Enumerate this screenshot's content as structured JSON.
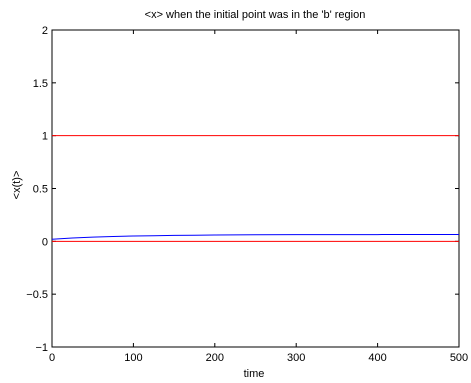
{
  "chart_data": {
    "type": "line",
    "title": "<x> when the initial point was in the 'b' region",
    "xlabel": "time",
    "ylabel": "<x(t)>",
    "xlim": [
      0,
      500
    ],
    "ylim": [
      -1,
      2
    ],
    "xticks": [
      0,
      100,
      200,
      300,
      400,
      500
    ],
    "yticks": [
      -1,
      -0.5,
      0,
      0.5,
      1,
      1.5,
      2
    ],
    "yticklabels": [
      "−1",
      "−0.5",
      "0",
      "0.5",
      "1",
      "1.5",
      "2"
    ],
    "grid": false,
    "series": [
      {
        "color": "#0000ff",
        "x": [
          0,
          10,
          25,
          50,
          75,
          100,
          125,
          150,
          175,
          200,
          250,
          300,
          350,
          400,
          450,
          500
        ],
        "y": [
          0.02,
          0.025,
          0.032,
          0.04,
          0.046,
          0.05,
          0.053,
          0.056,
          0.058,
          0.06,
          0.062,
          0.063,
          0.064,
          0.064,
          0.065,
          0.065
        ]
      }
    ],
    "reference_lines": [
      {
        "y": 1,
        "color": "#ff0000"
      },
      {
        "y": 0,
        "color": "#ff0000"
      }
    ]
  }
}
